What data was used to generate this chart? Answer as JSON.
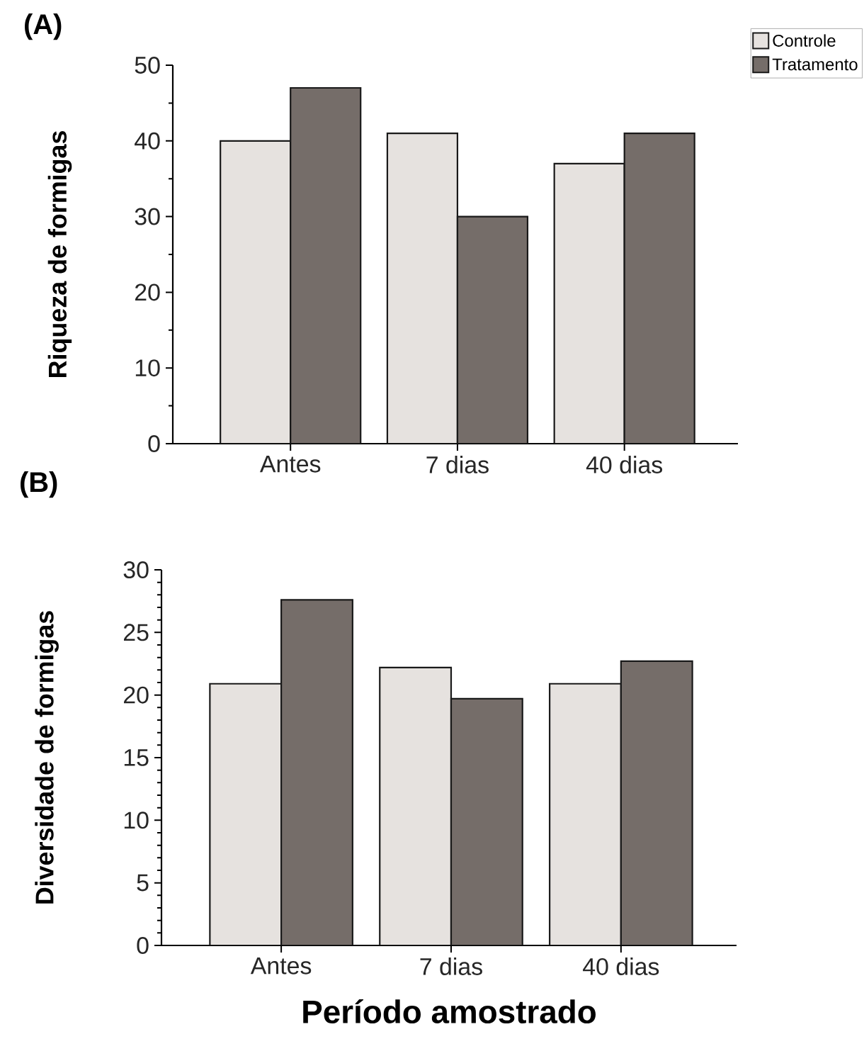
{
  "chart_data": [
    {
      "type": "bar",
      "title": "(A)",
      "ylabel": "Riqueza de formigas",
      "categories": [
        "Antes",
        "7 dias",
        "40 dias"
      ],
      "ylim": [
        0,
        50
      ],
      "yticks": [
        0,
        10,
        20,
        30,
        40,
        50
      ],
      "legend": "top right",
      "series": [
        {
          "name": "Controle",
          "color": "#e6e2df",
          "values": [
            40,
            41,
            37
          ]
        },
        {
          "name": "Tratamento",
          "color": "#756d69",
          "values": [
            47,
            30,
            41
          ]
        }
      ]
    },
    {
      "type": "bar",
      "title": "(B)",
      "ylabel": "Diversidade de formigas",
      "xlabel": "Período amostrado",
      "categories": [
        "Antes",
        "7 dias",
        "40 dias"
      ],
      "ylim": [
        0,
        30
      ],
      "yticks": [
        0,
        5,
        10,
        15,
        20,
        25,
        30
      ],
      "series": [
        {
          "color": "#e6e2df",
          "values": [
            20.9,
            22.2,
            20.9
          ]
        },
        {
          "color": "#756d69",
          "values": [
            27.6,
            19.7,
            22.7
          ]
        }
      ]
    }
  ]
}
